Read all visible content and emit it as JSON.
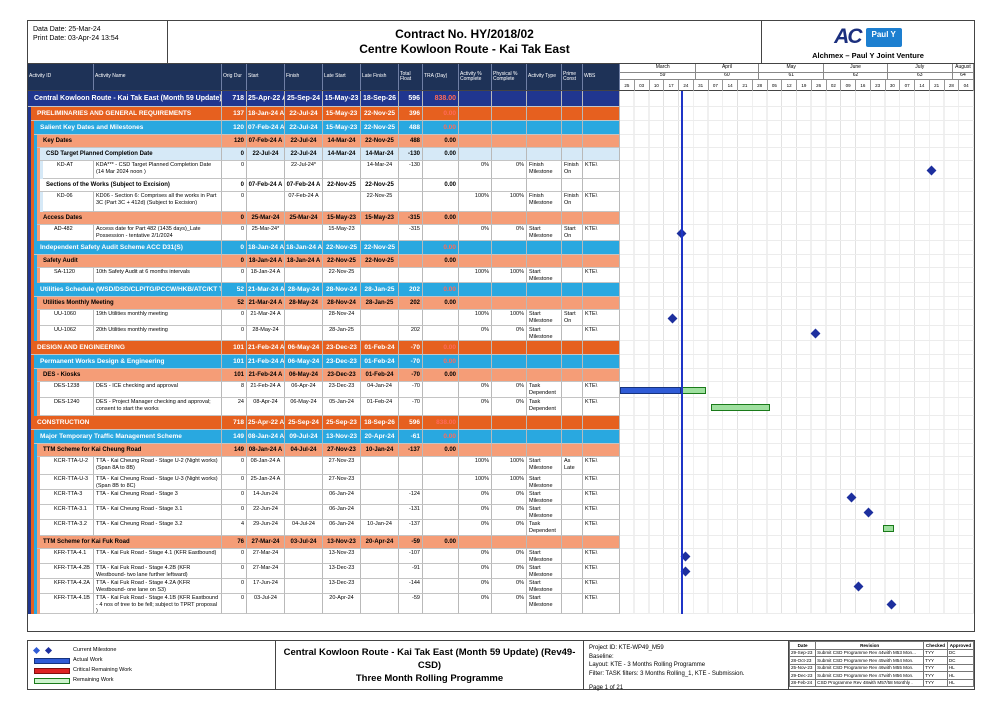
{
  "header": {
    "data_date": "Data Date: 25-Mar-24",
    "print_date": "Print Date: 03-Apr-24 13:54",
    "contract_no": "Contract No. HY/2018/02",
    "project_title": "Centre Kowloon Route - Kai Tak East",
    "logo_ac": "AC",
    "logo_pauly": "Paul Y",
    "jv_caption": "Alchmex – Paul Y Joint Venture"
  },
  "columns": [
    {
      "label": "Activity ID",
      "w": 66
    },
    {
      "label": "Activity Name",
      "w": 128
    },
    {
      "label": "Orig Dur",
      "w": 25
    },
    {
      "label": "Start",
      "w": 38
    },
    {
      "label": "Finish",
      "w": 38
    },
    {
      "label": "Late Start",
      "w": 38
    },
    {
      "label": "Late Finish",
      "w": 38
    },
    {
      "label": "Total Float",
      "w": 24
    },
    {
      "label": "TRA (Day)",
      "w": 36
    },
    {
      "label": "Activity % Complete",
      "w": 33
    },
    {
      "label": "Physical % Complete",
      "w": 35
    },
    {
      "label": "Activity Type",
      "w": 35
    },
    {
      "label": "Prime Const",
      "w": 21
    },
    {
      "label": "WBS",
      "w": 37
    }
  ],
  "timeline": {
    "start": "2024-02-25",
    "days": 168,
    "data_date": "2024-03-25",
    "weeks": [
      "25",
      "03",
      "10",
      "17",
      "24",
      "31",
      "07",
      "14",
      "21",
      "28",
      "05",
      "12",
      "19",
      "26",
      "02",
      "09",
      "16",
      "23",
      "30",
      "07",
      "14",
      "21",
      "28",
      "04"
    ],
    "months": [
      {
        "label": "March",
        "num": "59",
        "from": "2024-03-01",
        "to": "2024-04-01"
      },
      {
        "label": "April",
        "num": "60",
        "from": "2024-04-01",
        "to": "2024-05-01"
      },
      {
        "label": "May",
        "num": "61",
        "from": "2024-05-01",
        "to": "2024-06-01"
      },
      {
        "label": "June",
        "num": "62",
        "from": "2024-06-01",
        "to": "2024-07-01"
      },
      {
        "label": "July",
        "num": "63",
        "from": "2024-07-01",
        "to": "2024-08-01"
      },
      {
        "label": "August",
        "num": "64",
        "from": "2024-08-01",
        "to": "2024-08-11"
      }
    ]
  },
  "rows": [
    {
      "t": "proj",
      "name": "Central Kowloon Route - Kai Tak East (Month 59 Update) (Re",
      "od": "718",
      "st": "25-Apr-22 A",
      "fn": "25-Sep-24",
      "ls": "15-May-23",
      "lf": "18-Sep-26",
      "fl": "596",
      "tra": "838.00",
      "h": 16
    },
    {
      "t": "l1",
      "name": "PRELIMINARIES AND GENERAL REQUIREMENTS",
      "od": "137",
      "st": "18-Jan-24 A",
      "fn": "22-Jul-24",
      "ls": "15-May-23",
      "lf": "22-Nov-25",
      "fl": "396",
      "tra": "0.00",
      "h": 14
    },
    {
      "t": "l2",
      "name": "Salient Key Dates and Milestones",
      "od": "120",
      "st": "07-Feb-24 A",
      "fn": "22-Jul-24",
      "ls": "15-May-23",
      "lf": "22-Nov-25",
      "fl": "488",
      "tra": "0.00",
      "h": 14
    },
    {
      "t": "l3",
      "name": "Key Dates",
      "od": "120",
      "st": "07-Feb-24 A",
      "fn": "22-Jul-24",
      "ls": "14-Mar-24",
      "lf": "22-Nov-25",
      "fl": "488",
      "tra": "0.00",
      "h": 13
    },
    {
      "t": "l4",
      "name": "CSD Target Planned Completion Date",
      "od": "0",
      "st": "22-Jul-24",
      "fn": "22-Jul-24",
      "ls": "14-Mar-24",
      "lf": "14-Mar-24",
      "fl": "-130",
      "tra": "0.00",
      "h": 13
    },
    {
      "t": "act",
      "id": "KD-AT",
      "name": "KDA*** - CSD Target Planned Completion Date (14 Mar 2024 noon )",
      "od": "0",
      "fn": "22-Jul-24*",
      "lf": "14-Mar-24",
      "fl": "-130",
      "ap": "0%",
      "pp": "0%",
      "at": "Finish Milestone",
      "pc": "Finish On",
      "wbs": "KTE\\",
      "h": 18,
      "g": {
        "ms": "2024-07-22"
      }
    },
    {
      "t": "subw",
      "name": "Sections of the Works (Subject to Excision)",
      "od": "0",
      "st": "07-Feb-24 A",
      "fn": "07-Feb-24 A",
      "ls": "22-Nov-25",
      "lf": "22-Nov-25",
      "tra": "0.00",
      "h": 13
    },
    {
      "t": "act",
      "id": "KD-06",
      "name": "KD06 - Section 6:  Comprises all the works in Part 3C (Part 3C + 412d) (Subject to Excision)",
      "od": "0",
      "fn": "07-Feb-24 A",
      "lf": "22-Nov-25",
      "ap": "100%",
      "pp": "100%",
      "at": "Finish Milestone",
      "pc": "Finish On",
      "wbs": "KTE\\",
      "h": 20
    },
    {
      "t": "l3",
      "name": "Access Dates",
      "od": "0",
      "st": "25-Mar-24",
      "fn": "25-Mar-24",
      "ls": "15-May-23",
      "lf": "15-May-23",
      "fl": "-315",
      "tra": "0.00",
      "h": 13
    },
    {
      "t": "act",
      "id": "AD-482",
      "name": "Access date for Part 482 (1435 days)_Late Possession - tentative 2/1/2024",
      "od": "0",
      "st": "25-Mar-24*",
      "ls": "15-May-23",
      "fl": "-315",
      "ap": "0%",
      "pp": "0%",
      "at": "Start Milestone",
      "pc": "Start On",
      "wbs": "KTE\\",
      "h": 16,
      "g": {
        "ms": "2024-03-25"
      }
    },
    {
      "t": "l2",
      "name": "Independent Safety Audit Scheme ACC D31(S)",
      "od": "0",
      "st": "18-Jan-24 A",
      "fn": "18-Jan-24 A",
      "ls": "22-Nov-25",
      "lf": "22-Nov-25",
      "tra": "0.00",
      "h": 14
    },
    {
      "t": "l3",
      "name": "Safety Audit",
      "od": "0",
      "st": "18-Jan-24 A",
      "fn": "18-Jan-24 A",
      "ls": "22-Nov-25",
      "lf": "22-Nov-25",
      "tra": "0.00",
      "h": 13
    },
    {
      "t": "act",
      "id": "SA-1120",
      "name": "10th Safety Audit at 6 months intervals",
      "od": "0",
      "st": "18-Jan-24 A",
      "ls": "22-Nov-25",
      "ap": "100%",
      "pp": "100%",
      "at": "Start Milestone",
      "wbs": "KTE\\",
      "h": 15
    },
    {
      "t": "l2",
      "name": "Utilities Schedule (WSD/DSD/CLP/TG/PCCW/HKB/ATC/KT Tun",
      "od": "52",
      "st": "21-Mar-24 A",
      "fn": "28-May-24",
      "ls": "28-Nov-24",
      "lf": "28-Jan-25",
      "fl": "202",
      "tra": "0.00",
      "h": 14
    },
    {
      "t": "l3",
      "name": "Utilities Monthly Meeting",
      "od": "52",
      "st": "21-Mar-24 A",
      "fn": "28-May-24",
      "ls": "28-Nov-24",
      "lf": "28-Jan-25",
      "fl": "202",
      "tra": "0.00",
      "h": 13
    },
    {
      "t": "act",
      "id": "UU-1060",
      "name": "19th  Utilities monthly meeting",
      "od": "0",
      "st": "21-Mar-24 A",
      "ls": "28-Nov-24",
      "ap": "100%",
      "pp": "100%",
      "at": "Start Milestone",
      "pc": "Start On",
      "wbs": "KTE\\",
      "h": 16,
      "g": {
        "ms": "2024-03-21"
      }
    },
    {
      "t": "act",
      "id": "UU-1062",
      "name": "20th  Utilities monthly meeting",
      "od": "0",
      "st": "28-May-24",
      "ls": "28-Jan-25",
      "fl": "202",
      "ap": "0%",
      "pp": "0%",
      "at": "Start Milestone",
      "wbs": "KTE\\",
      "h": 15,
      "g": {
        "ms": "2024-05-28"
      }
    },
    {
      "t": "l1",
      "name": "DESIGN AND ENGINEERING",
      "od": "101",
      "st": "21-Feb-24 A",
      "fn": "06-May-24",
      "ls": "23-Dec-23",
      "lf": "01-Feb-24",
      "fl": "-70",
      "tra": "0.00",
      "h": 14
    },
    {
      "t": "l2",
      "name": "Permanent Works Design & Engineering",
      "od": "101",
      "st": "21-Feb-24 A",
      "fn": "06-May-24",
      "ls": "23-Dec-23",
      "lf": "01-Feb-24",
      "fl": "-70",
      "tra": "0.00",
      "h": 14
    },
    {
      "t": "l3",
      "name": "DES - Kiosks",
      "od": "101",
      "st": "21-Feb-24 A",
      "fn": "06-May-24",
      "ls": "23-Dec-23",
      "lf": "01-Feb-24",
      "fl": "-70",
      "tra": "0.00",
      "h": 13
    },
    {
      "t": "act",
      "id": "DES-1238",
      "name": "DES - ICE checking and approval",
      "od": "8",
      "st": "21-Feb-24 A",
      "fn": "06-Apr-24",
      "ls": "23-Dec-23",
      "lf": "04-Jan-24",
      "fl": "-70",
      "ap": "0%",
      "pp": "0%",
      "at": "Task Dependent",
      "wbs": "KTE\\",
      "h": 16,
      "g": {
        "bars": [
          {
            "k": "actual",
            "f": "2024-02-25",
            "t": "2024-03-25"
          },
          {
            "k": "remaining",
            "f": "2024-03-25",
            "t": "2024-04-06"
          }
        ]
      }
    },
    {
      "t": "act",
      "id": "DES-1240",
      "name": "DES - Project Manager checking and approval; consent to start the works",
      "od": "24",
      "st": "08-Apr-24",
      "fn": "06-May-24",
      "ls": "05-Jan-24",
      "lf": "01-Feb-24",
      "fl": "-70",
      "ap": "0%",
      "pp": "0%",
      "at": "Task Dependent",
      "wbs": "KTE\\",
      "h": 18,
      "g": {
        "bars": [
          {
            "k": "remaining",
            "f": "2024-04-08",
            "t": "2024-05-06"
          }
        ]
      }
    },
    {
      "t": "l1",
      "name": "CONSTRUCTION",
      "od": "718",
      "st": "25-Apr-22 A",
      "fn": "25-Sep-24",
      "ls": "25-Sep-23",
      "lf": "18-Sep-26",
      "fl": "596",
      "tra": "838.00",
      "h": 14
    },
    {
      "t": "l2",
      "name": "Major Temporary Traffic Management Scheme",
      "od": "149",
      "st": "08-Jan-24 A",
      "fn": "09-Jul-24",
      "ls": "13-Nov-23",
      "lf": "20-Apr-24",
      "fl": "-61",
      "tra": "0.00",
      "h": 14
    },
    {
      "t": "l3",
      "name": "TTM Scheme for Kai Cheung Road",
      "od": "149",
      "st": "08-Jan-24 A",
      "fn": "04-Jul-24",
      "ls": "27-Nov-23",
      "lf": "10-Jan-24",
      "fl": "-137",
      "tra": "0.00",
      "h": 13
    },
    {
      "t": "act",
      "id": "KCR-TTA-U-2",
      "name": "TTA - Kai Cheung Road - Stage U-2 (Night works) (Span 8A to 8B)",
      "od": "0",
      "st": "08-Jan-24 A",
      "ls": "27-Nov-23",
      "ap": "100%",
      "pp": "100%",
      "at": "Start Milestone",
      "pc": "As Late",
      "wbs": "KTE\\",
      "h": 18
    },
    {
      "t": "act",
      "id": "KCR-TTA-U-3",
      "name": "TTA - Kai Cheung Road - Stage U-3 (Night works) (Span 8B to 8C)",
      "od": "0",
      "st": "25-Jan-24 A",
      "ls": "27-Nov-23",
      "ap": "100%",
      "pp": "100%",
      "at": "Start Milestone",
      "wbs": "KTE\\",
      "h": 15
    },
    {
      "t": "act",
      "id": "KCR-TTA-3",
      "name": "TTA - Kai Cheung Road - Stage 3",
      "od": "0",
      "st": "14-Jun-24",
      "ls": "06-Jan-24",
      "fl": "-124",
      "ap": "0%",
      "pp": "0%",
      "at": "Start Milestone",
      "wbs": "KTE\\",
      "h": 15,
      "g": {
        "ms": "2024-06-14"
      }
    },
    {
      "t": "act",
      "id": "KCR-TTA-3.1",
      "name": "TTA - Kai Cheung Road - Stage 3.1",
      "od": "0",
      "st": "22-Jun-24",
      "ls": "06-Jan-24",
      "fl": "-131",
      "ap": "0%",
      "pp": "0%",
      "at": "Start Milestone",
      "wbs": "KTE\\",
      "h": 15,
      "g": {
        "ms": "2024-06-22"
      }
    },
    {
      "t": "act",
      "id": "KCR-TTA-3.2",
      "name": "TTA - Kai Cheung Road - Stage 3.2",
      "od": "4",
      "st": "29-Jun-24",
      "fn": "04-Jul-24",
      "ls": "06-Jan-24",
      "lf": "10-Jan-24",
      "fl": "-137",
      "ap": "0%",
      "pp": "0%",
      "at": "Task Dependent",
      "wbs": "KTE\\",
      "h": 16,
      "g": {
        "bars": [
          {
            "k": "remaining",
            "f": "2024-06-29",
            "t": "2024-07-04"
          }
        ]
      }
    },
    {
      "t": "l3",
      "name": "TTM Scheme for Kai Fuk Road",
      "od": "76",
      "st": "27-Mar-24",
      "fn": "03-Jul-24",
      "ls": "13-Nov-23",
      "lf": "20-Apr-24",
      "fl": "-59",
      "tra": "0.00",
      "h": 13
    },
    {
      "t": "act",
      "id": "KFR-TTA-4.1",
      "name": "TTA - Kai Fuk Road - Stage 4.1 (KFR Eastbound)",
      "od": "0",
      "st": "27-Mar-24",
      "ls": "13-Nov-23",
      "fl": "-107",
      "ap": "0%",
      "pp": "0%",
      "at": "Start Milestone",
      "wbs": "KTE\\",
      "h": 15,
      "g": {
        "ms": "2024-03-27"
      }
    },
    {
      "t": "act",
      "id": "KFR-TTA-4.2B",
      "name": "TTA - Kai Fuk Road - Stage 4.2B (KFR Westbound- two lane further leftward)",
      "od": "0",
      "st": "27-Mar-24",
      "ls": "13-Dec-23",
      "fl": "-91",
      "ap": "0%",
      "pp": "0%",
      "at": "Start Milestone",
      "wbs": "KTE\\",
      "h": 15,
      "g": {
        "ms": "2024-03-27"
      }
    },
    {
      "t": "act",
      "id": "KFR-TTA-4.2A",
      "name": "TTA - Kai Fuk Road - Stage 4.2A (KFR Westbound- one lane on S3)",
      "od": "0",
      "st": "17-Jun-24",
      "ls": "13-Dec-23",
      "fl": "-144",
      "ap": "0%",
      "pp": "0%",
      "at": "Start Milestone",
      "wbs": "KTE\\",
      "h": 15,
      "g": {
        "ms": "2024-06-17"
      }
    },
    {
      "t": "act",
      "id": "KFR-TTA-4.1B",
      "name": "TTA - Kai Fuk Road - Stage 4.1B (KFR Eastbound - 4 nos of tree to be fell; subject to TPRT proposal )",
      "od": "0",
      "st": "03-Jul-24",
      "ls": "20-Apr-24",
      "fl": "-59",
      "ap": "0%",
      "pp": "0%",
      "at": "Start Milestone",
      "wbs": "KTE\\",
      "h": 20,
      "g": {
        "ms": "2024-07-03"
      }
    }
  ],
  "footer": {
    "legend": [
      {
        "type": "milestone",
        "label": "Current Milestone"
      },
      {
        "type": "actual",
        "label": "Actual Work"
      },
      {
        "type": "critical",
        "label": "Critical Remaining Work"
      },
      {
        "type": "remaining",
        "label": "Remaining Work"
      }
    ],
    "title_line1": "Central Kowloon Route - Kai Tak East (Month 59 Update) (Rev49- CSD)",
    "title_line2": "Three Month Rolling Programme",
    "meta": [
      "Project ID: KTE-WP49_M59",
      "Baseline:",
      "Layout: KTE - 3 Months Rolling Programme",
      "Filter: TASK filters: 3 Months Rolling_1, KTE - Submission."
    ],
    "page_label": "Page 1 of 21",
    "revisions": {
      "headers": [
        "Date",
        "Revision",
        "Checked",
        "Approved"
      ],
      "rows": [
        [
          "29-Sep-23",
          "Submit CSD Programme Rev 44with M53 Mon...",
          "TYY",
          "DC"
        ],
        [
          "28-Oct-23",
          "Submit CSD Programme Rev 45with M54 Mon.",
          "TYY",
          "DC"
        ],
        [
          "25-Nov-23",
          "Submit CSD Programme Rev 46with M55 Mon.",
          "TYY",
          "HL"
        ],
        [
          "29-Dec-23",
          "Submit CSD Programme Rev 47with M56 Mon.",
          "TYY",
          "HL"
        ],
        [
          "28-Feb-24",
          "CSD Programme Rev 48with M57/58 Monthly .",
          "TYY",
          "HL"
        ]
      ]
    }
  },
  "colors": {
    "header_bg": "#1e3257",
    "project_row": "#20368f",
    "level1": "#e6601f",
    "level2": "#29a8e0",
    "level3": "#f59d77",
    "level4": "#d6e9f7",
    "milestone": "#1d2f9e",
    "actual_bar": "#2f5bd6",
    "remaining_bar": "#9fe09f",
    "data_date_line": "#1f35c7",
    "tra_text": "#c00000"
  }
}
